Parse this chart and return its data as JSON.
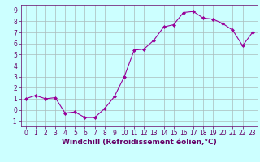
{
  "x": [
    0,
    1,
    2,
    3,
    4,
    5,
    6,
    7,
    8,
    9,
    10,
    11,
    12,
    13,
    14,
    15,
    16,
    17,
    18,
    19,
    20,
    21,
    22,
    23
  ],
  "y": [
    1.0,
    1.3,
    1.0,
    1.1,
    -0.3,
    -0.2,
    -0.7,
    -0.7,
    0.1,
    1.2,
    3.0,
    5.4,
    5.5,
    6.3,
    7.5,
    7.7,
    8.8,
    8.9,
    8.3,
    8.2,
    7.8,
    7.2,
    5.8,
    7.0
  ],
  "line_color": "#990099",
  "marker": "D",
  "marker_size": 2,
  "bg_color": "#ccffff",
  "grid_color": "#aabbbb",
  "xlabel": "Windchill (Refroidissement éolien,°C)",
  "xlim": [
    -0.5,
    23.5
  ],
  "ylim": [
    -1.5,
    9.5
  ],
  "yticks": [
    -1,
    0,
    1,
    2,
    3,
    4,
    5,
    6,
    7,
    8,
    9
  ],
  "xticks": [
    0,
    1,
    2,
    3,
    4,
    5,
    6,
    7,
    8,
    9,
    10,
    11,
    12,
    13,
    14,
    15,
    16,
    17,
    18,
    19,
    20,
    21,
    22,
    23
  ],
  "tick_fontsize": 5.5,
  "xlabel_fontsize": 6.5,
  "text_color": "#660066",
  "spine_color": "#660066",
  "linewidth": 0.8
}
